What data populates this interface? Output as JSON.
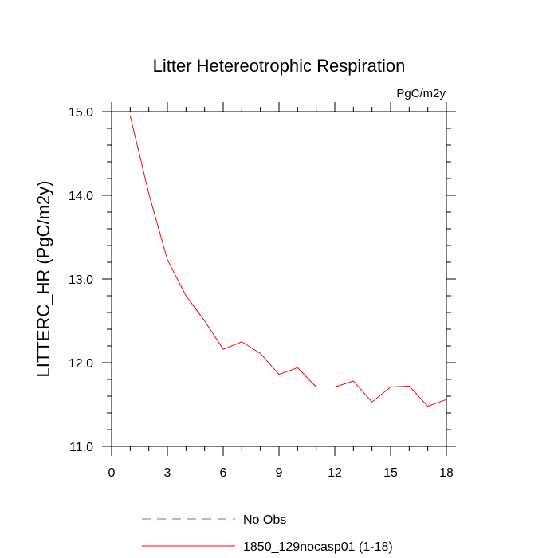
{
  "chart_data": {
    "type": "line",
    "title": "Litter Hetereotrophic Respiration",
    "units_label": "PgC/m2y",
    "ylabel": "LITTERC_HR  (PgC/m2y)",
    "xlabel": "",
    "xlim": [
      0,
      18
    ],
    "ylim": [
      11.0,
      15.0
    ],
    "x_ticks": [
      0,
      3,
      6,
      9,
      12,
      15,
      18
    ],
    "y_ticks": [
      11.0,
      12.0,
      13.0,
      14.0,
      15.0
    ],
    "y_tick_labels": [
      "11.0",
      "12.0",
      "13.0",
      "14.0",
      "15.0"
    ],
    "series": [
      {
        "name": "1850_129nocasp01 (1-18)",
        "color": "#ff0000",
        "style": "solid",
        "x": [
          1,
          2,
          3,
          4,
          5,
          6,
          7,
          8,
          9,
          10,
          11,
          12,
          13,
          14,
          15,
          16,
          17,
          18
        ],
        "values": [
          14.95,
          14.02,
          13.23,
          12.8,
          12.5,
          12.16,
          12.25,
          12.11,
          11.86,
          11.94,
          11.71,
          11.71,
          11.78,
          11.53,
          11.71,
          11.72,
          11.48,
          11.56
        ]
      }
    ],
    "legend": [
      {
        "label": "No Obs",
        "color": "#6666ff",
        "style": "dashed"
      },
      {
        "label": "1850_129nocasp01 (1-18)",
        "color": "#ff0000",
        "style": "solid"
      }
    ]
  }
}
